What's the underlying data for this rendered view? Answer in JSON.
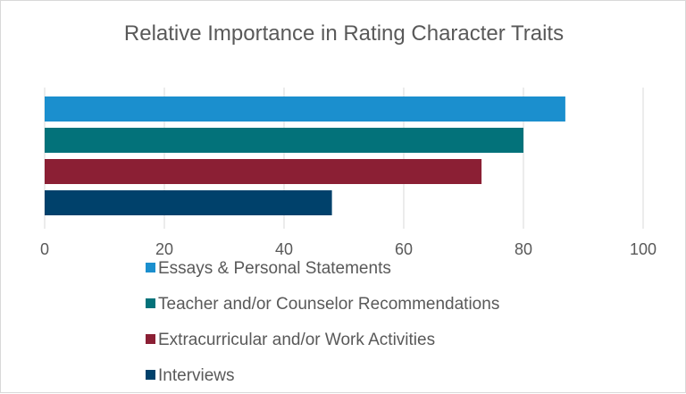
{
  "chart_data": {
    "type": "bar",
    "orientation": "horizontal",
    "title": "Relative Importance in Rating Character Traits",
    "xlabel": "",
    "ylabel": "",
    "xlim": [
      0,
      100
    ],
    "x_ticks": [
      0,
      20,
      40,
      60,
      80,
      100
    ],
    "grid": true,
    "legend_position": "bottom",
    "series": [
      {
        "name": "Essays & Personal Statements",
        "value": 87,
        "color": "#1b8fce"
      },
      {
        "name": "Teacher and/or Counselor Recommendations",
        "value": 80,
        "color": "#03727a"
      },
      {
        "name": "Extracurricular and/or Work Activities",
        "value": 73,
        "color": "#8b1f34"
      },
      {
        "name": "Interviews",
        "value": 48,
        "color": "#00416b"
      }
    ]
  }
}
